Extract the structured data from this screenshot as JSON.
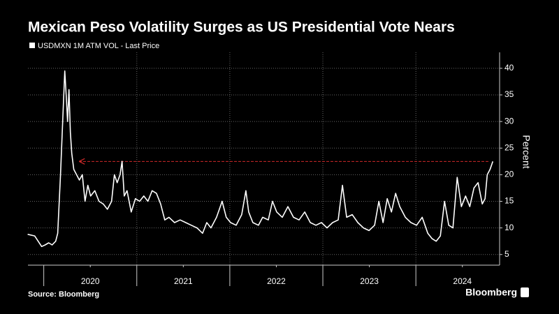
{
  "chart_data": {
    "type": "line",
    "title": "Mexican Peso Volatility Surges as US Presidential Vote Nears",
    "ylabel": "Percent",
    "source": "Source: Bloomberg",
    "brand": "Bloomberg",
    "series": [
      {
        "name": "USDMXN 1M ATM VOL - Last Price",
        "color": "#ffffff",
        "x": [
          2019.827,
          2019.902,
          2019.94,
          2019.977,
          2020.015,
          2020.053,
          2020.09,
          2020.128,
          2020.15,
          2020.18,
          2020.203,
          2020.226,
          2020.241,
          2020.256,
          2020.271,
          2020.286,
          2020.301,
          2020.323,
          2020.353,
          2020.383,
          2020.414,
          2020.444,
          2020.474,
          2020.504,
          2020.549,
          2020.594,
          2020.639,
          2020.684,
          2020.729,
          2020.759,
          2020.789,
          2020.82,
          2020.842,
          2020.865,
          2020.895,
          2020.94,
          2020.985,
          2021.03,
          2021.075,
          2021.12,
          2021.165,
          2021.211,
          2021.256,
          2021.301,
          2021.346,
          2021.406,
          2021.466,
          2021.526,
          2021.586,
          2021.647,
          2021.707,
          2021.752,
          2021.797,
          2021.857,
          2021.917,
          2021.962,
          2022.008,
          2022.068,
          2022.128,
          2022.173,
          2022.203,
          2022.248,
          2022.308,
          2022.353,
          2022.414,
          2022.459,
          2022.504,
          2022.564,
          2022.624,
          2022.684,
          2022.744,
          2022.805,
          2022.865,
          2022.925,
          2022.985,
          2023.045,
          2023.105,
          2023.165,
          2023.211,
          2023.256,
          2023.316,
          2023.376,
          2023.436,
          2023.496,
          2023.556,
          2023.602,
          2023.647,
          2023.692,
          2023.737,
          2023.782,
          2023.827,
          2023.887,
          2023.947,
          2024.008,
          2024.068,
          2024.128,
          2024.173,
          2024.218,
          2024.263,
          2024.308,
          2024.353,
          2024.398,
          2024.444,
          2024.489,
          2024.534,
          2024.579,
          2024.624,
          2024.669,
          2024.714,
          2024.744,
          2024.767,
          2024.797,
          2024.827
        ],
        "values": [
          8.8,
          8.5,
          7.5,
          6.5,
          6.8,
          7.2,
          6.8,
          7.5,
          9,
          20,
          30,
          39.5,
          35,
          30,
          36,
          28,
          24,
          21,
          20,
          19,
          20,
          15,
          18,
          16,
          17,
          15,
          14.5,
          13.5,
          15,
          20,
          18.5,
          20,
          22.5,
          16,
          17,
          13,
          15.5,
          15,
          16,
          15,
          17,
          16.5,
          14.5,
          11.5,
          12,
          11,
          11.5,
          11,
          10.5,
          10,
          9,
          11,
          10,
          12,
          15,
          12,
          11,
          10.5,
          12.5,
          17,
          13,
          11,
          10.5,
          12,
          11.5,
          15,
          13,
          12,
          14,
          12,
          11.5,
          13,
          11,
          10.5,
          11,
          10,
          11,
          11.5,
          18,
          12,
          12.5,
          11,
          10,
          9.5,
          10.5,
          15,
          11,
          15.5,
          13,
          16.5,
          14,
          12,
          11,
          10.5,
          12,
          9,
          8,
          7.5,
          8.5,
          15,
          10.5,
          10,
          19.5,
          14,
          16,
          14,
          17.5,
          18.5,
          14.5,
          15.5,
          20,
          21,
          22.5
        ]
      }
    ],
    "xlim": [
      2019.83,
      2024.9
    ],
    "xticks": [
      {
        "value": 2020.5,
        "label": "2020"
      },
      {
        "value": 2021.5,
        "label": "2021"
      },
      {
        "value": 2022.5,
        "label": "2022"
      },
      {
        "value": 2023.5,
        "label": "2023"
      },
      {
        "value": 2024.5,
        "label": "2024"
      }
    ],
    "ylim": [
      3,
      43
    ],
    "yticks": [
      5,
      10,
      15,
      20,
      25,
      30,
      35,
      40
    ],
    "grid": true,
    "reference_line": {
      "y": 22.5,
      "x": [
        2024.78,
        2020.38
      ],
      "color": "#d02a2a"
    }
  }
}
